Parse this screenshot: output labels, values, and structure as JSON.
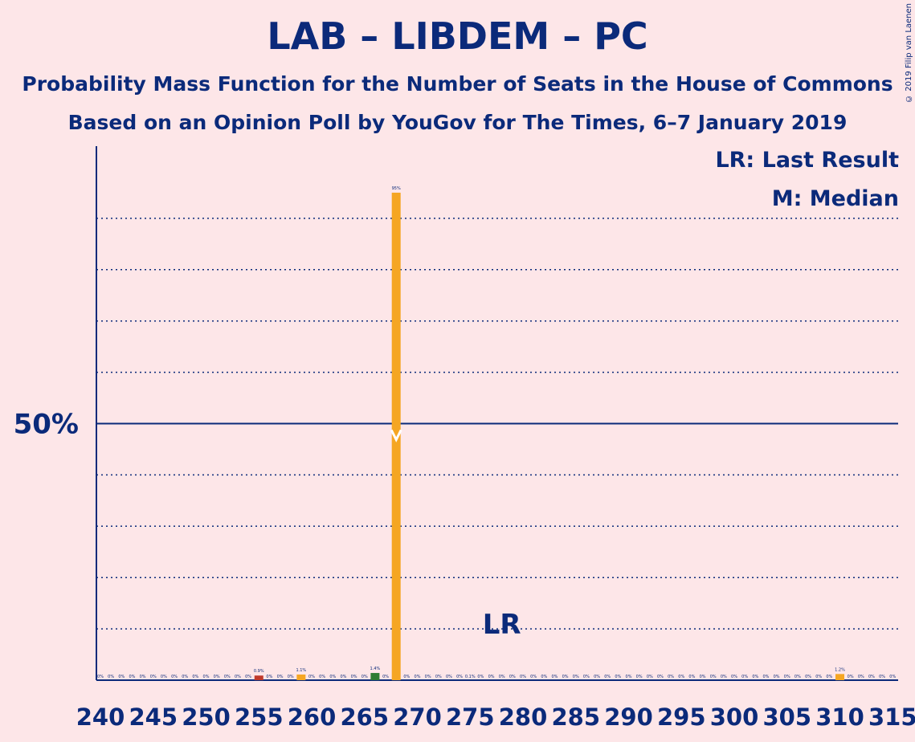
{
  "title": "LAB – LIBDEM – PC",
  "subtitle": "Probability Mass Function for the Number of Seats in the House of Commons",
  "subtitle2": "Based on an Opinion Poll by YouGov for The Times, 6–7 January 2019",
  "copyright": "© 2019 Filip van Laenen",
  "legend": {
    "lr": "LR: Last Result",
    "median": "M: Median"
  },
  "colors": {
    "background": "#fde6e8",
    "axis": "#0b2a7a",
    "main": "#f5a623",
    "last_result": "#c0392b",
    "green": "#2e7d32"
  },
  "chart_data": {
    "type": "bar",
    "x_min": 240,
    "x_max": 316,
    "xticks": [
      240,
      245,
      250,
      255,
      260,
      265,
      270,
      275,
      280,
      285,
      290,
      295,
      300,
      305,
      310,
      315
    ],
    "ylim": [
      0,
      100
    ],
    "ytick_label": "50%",
    "ytick_value": 50,
    "grid": "dotted every 10%",
    "last_result_seat": 278,
    "last_result_label": "LR",
    "median_seat": 268,
    "bars": [
      {
        "x": 255,
        "value": 0.9,
        "label": "0.9%",
        "color": "last_result"
      },
      {
        "x": 259,
        "value": 1.1,
        "label": "1.1%",
        "color": "main"
      },
      {
        "x": 266,
        "value": 1.4,
        "label": "1.4%",
        "color": "green"
      },
      {
        "x": 268,
        "value": 95,
        "label": "95%",
        "color": "main"
      },
      {
        "x": 310,
        "value": 1.2,
        "label": "1.2%",
        "color": "main"
      }
    ],
    "small_labels": [
      {
        "x": 275,
        "label": "0.1%"
      }
    ],
    "zero_label": "0%"
  }
}
